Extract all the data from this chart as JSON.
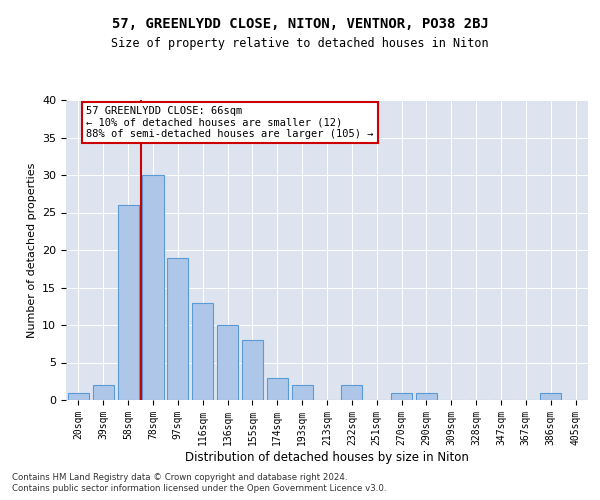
{
  "title": "57, GREENLYDD CLOSE, NITON, VENTNOR, PO38 2BJ",
  "subtitle": "Size of property relative to detached houses in Niton",
  "xlabel": "Distribution of detached houses by size in Niton",
  "ylabel": "Number of detached properties",
  "bar_labels": [
    "20sqm",
    "39sqm",
    "58sqm",
    "78sqm",
    "97sqm",
    "116sqm",
    "136sqm",
    "155sqm",
    "174sqm",
    "193sqm",
    "213sqm",
    "232sqm",
    "251sqm",
    "270sqm",
    "290sqm",
    "309sqm",
    "328sqm",
    "347sqm",
    "367sqm",
    "386sqm",
    "405sqm"
  ],
  "bar_values": [
    1,
    2,
    26,
    30,
    19,
    13,
    10,
    8,
    3,
    2,
    0,
    2,
    0,
    1,
    1,
    0,
    0,
    0,
    0,
    1,
    0
  ],
  "bar_color": "#aec7e8",
  "bar_edge_color": "#5b9bd5",
  "vline_x_index": 2.5,
  "vline_color": "#cc0000",
  "annotation_text": "57 GREENLYDD CLOSE: 66sqm\n← 10% of detached houses are smaller (12)\n88% of semi-detached houses are larger (105) →",
  "annotation_box_color": "#ffffff",
  "annotation_box_edge": "#cc0000",
  "ylim": [
    0,
    40
  ],
  "yticks": [
    0,
    5,
    10,
    15,
    20,
    25,
    30,
    35,
    40
  ],
  "bg_color": "#dde4f0",
  "footer_line1": "Contains HM Land Registry data © Crown copyright and database right 2024.",
  "footer_line2": "Contains public sector information licensed under the Open Government Licence v3.0."
}
